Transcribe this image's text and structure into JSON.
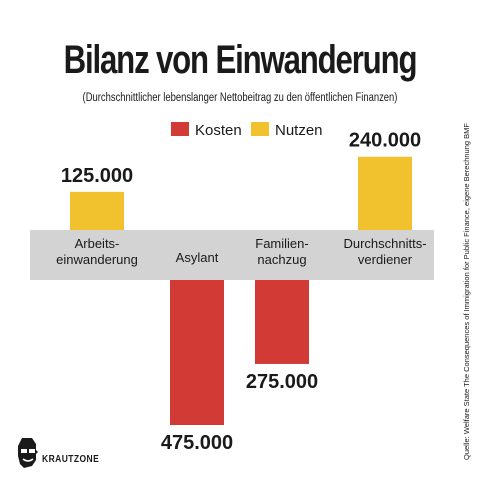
{
  "header": {
    "title": "Bilanz von Einwanderung",
    "subtitle": "(Durchschnittlicher lebenslanger Nettobeitrag zu den öffentlichen Finanzen)"
  },
  "colors": {
    "kosten": "#d13a35",
    "nutzen": "#f2c12e",
    "band": "#d3d3d3",
    "text": "#1a1a1a"
  },
  "chart_data": {
    "type": "bar",
    "categories": [
      "Arbeits-\neinwanderung",
      "Asylant",
      "Familien-\nnachzug",
      "Durchschnitts-\nverdiener"
    ],
    "series": [
      {
        "name": "Kosten",
        "values": [
          0,
          475000,
          275000,
          0
        ]
      },
      {
        "name": "Nutzen",
        "values": [
          125000,
          0,
          0,
          240000
        ]
      }
    ],
    "data_labels": [
      "125.000",
      "475.000",
      "275.000",
      "240.000"
    ],
    "legend": {
      "position": "top-center",
      "entries": [
        "Kosten",
        "Nutzen"
      ]
    },
    "grid": false
  },
  "footer": {
    "source": "Quelle: Welfare State The Consequences of Immigration for Public Finance, eigene Berechnung BMF",
    "brand": "KRAUTZONE"
  }
}
